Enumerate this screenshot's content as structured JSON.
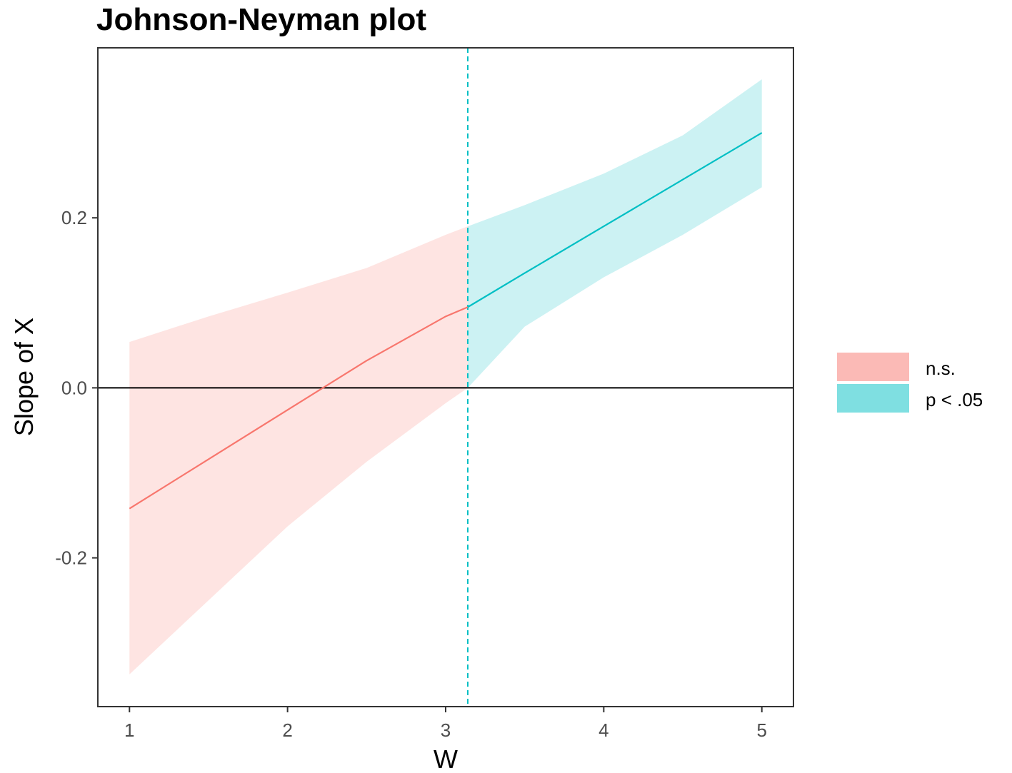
{
  "chart_data": {
    "type": "line",
    "title": "Johnson-Neyman plot",
    "xlabel": "W",
    "ylabel": "Slope of X",
    "xlim": [
      0.8,
      5.2
    ],
    "ylim": [
      -0.375,
      0.4
    ],
    "x_ticks": [
      1,
      2,
      3,
      4,
      5
    ],
    "x_tick_labels": [
      "1",
      "2",
      "3",
      "4",
      "5"
    ],
    "y_ticks": [
      -0.2,
      0.0,
      0.2
    ],
    "y_tick_labels": [
      "-0.2",
      "0.0",
      "0.2"
    ],
    "johnson_neyman_point": 3.14,
    "reference_line_y": 0,
    "grid": false,
    "legend_position": "right",
    "series": [
      {
        "name": "n.s.",
        "color": "#F8766D",
        "band_color": "#F8766D",
        "x": [
          1.0,
          1.5,
          2.0,
          2.5,
          3.0,
          3.14
        ],
        "y": [
          -0.142,
          -0.084,
          -0.026,
          0.032,
          0.084,
          0.095
        ],
        "lower": [
          -0.337,
          -0.25,
          -0.163,
          -0.087,
          -0.018,
          0.0
        ],
        "upper": [
          0.054,
          0.084,
          0.112,
          0.141,
          0.18,
          0.19
        ]
      },
      {
        "name": "p < .05",
        "color": "#00BFC4",
        "band_color": "#00BFC4",
        "x": [
          3.14,
          3.5,
          4.0,
          4.5,
          5.0
        ],
        "y": [
          0.095,
          0.135,
          0.19,
          0.245,
          0.3
        ],
        "lower": [
          0.0,
          0.072,
          0.13,
          0.18,
          0.236
        ],
        "upper": [
          0.19,
          0.215,
          0.252,
          0.297,
          0.363
        ]
      }
    ]
  }
}
